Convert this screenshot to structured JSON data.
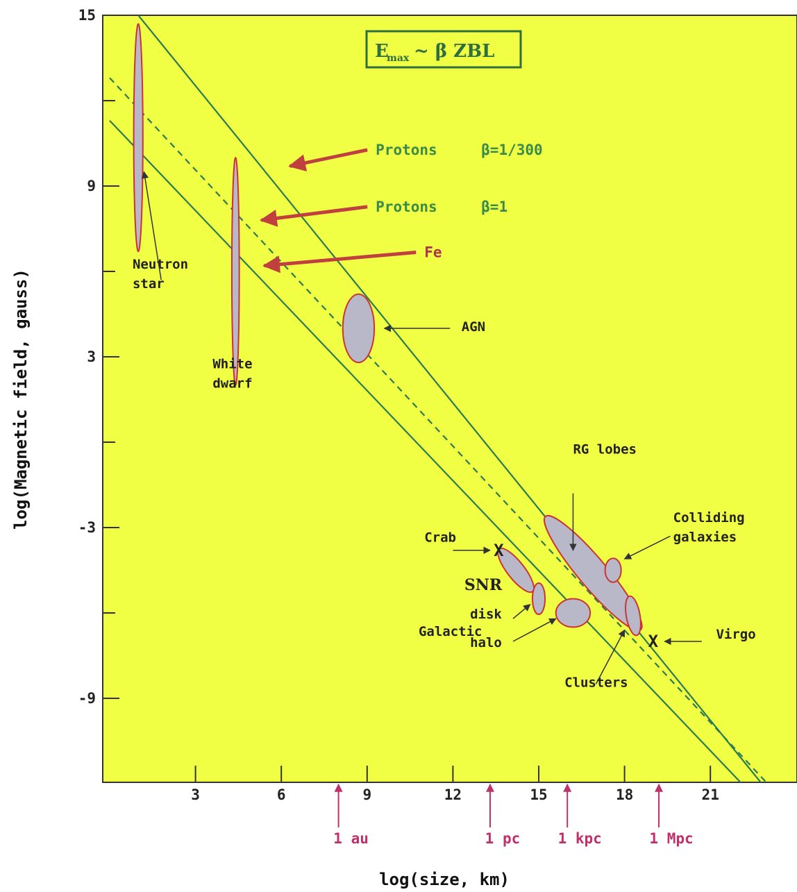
{
  "chart_data": {
    "type": "scatter",
    "title": "E_max ~ β ZBL",
    "title_parts": {
      "e": "E",
      "sub": "max",
      "rest": "~ β ZBL"
    },
    "xlabel": "log(size, km)",
    "ylabel": "log(Magnetic field, gauss)",
    "xlim": [
      0,
      23
    ],
    "ylim": [
      -12,
      15
    ],
    "x_ticks": [
      3,
      6,
      9,
      12,
      15,
      18,
      21
    ],
    "y_ticks": [
      -9,
      -3,
      3,
      9,
      15
    ],
    "y_minor_ticks": [
      -6,
      0,
      6,
      12
    ],
    "background_color": "#f0ff44",
    "line_color": "#2a7a52",
    "ellipse_stroke": "#cc3333",
    "ellipse_fill": "#b8b8c8",
    "limit_lines": [
      {
        "name": "Protons β=1/300",
        "style": "solid",
        "points": [
          [
            1.0,
            15.0
          ],
          [
            22.8,
            -12.0
          ]
        ]
      },
      {
        "name": "Protons β=1",
        "style": "dashed",
        "points": [
          [
            0.0,
            12.8
          ],
          [
            23.0,
            -12.0
          ]
        ]
      },
      {
        "name": "Fe",
        "style": "solid",
        "points": [
          [
            0.0,
            11.3
          ],
          [
            22.1,
            -12.0
          ]
        ]
      }
    ],
    "line_labels": [
      {
        "text": "Protons",
        "beta": "β=1/300",
        "class": "green",
        "at": [
          9.3,
          10.1
        ],
        "arrow_to": [
          6.3,
          9.7
        ]
      },
      {
        "text": "Protons",
        "beta": "β=1",
        "class": "green",
        "at": [
          9.3,
          8.1
        ],
        "arrow_to": [
          5.3,
          7.8
        ]
      },
      {
        "text": "Fe",
        "beta": "",
        "class": "red",
        "at": [
          11.0,
          6.5
        ],
        "arrow_to": [
          5.4,
          6.2
        ]
      }
    ],
    "objects": [
      {
        "name": "Neutron star",
        "shape": "ellipse",
        "x": 1.0,
        "y": 10.7,
        "rx": 0.16,
        "ry": 4.0,
        "angle": 0
      },
      {
        "name": "White dwarf",
        "shape": "ellipse",
        "x": 4.4,
        "y": 6.0,
        "rx": 0.13,
        "ry": 4.0,
        "angle": 0
      },
      {
        "name": "AGN",
        "shape": "ellipse",
        "x": 8.7,
        "y": 4.0,
        "rx": 0.55,
        "ry": 1.2,
        "angle": 0
      },
      {
        "name": "SNR",
        "shape": "ellipse",
        "x": 14.2,
        "y": -4.5,
        "rx": 0.3,
        "ry": 0.95,
        "angle": -38
      },
      {
        "name": "Galactic disk",
        "shape": "ellipse",
        "x": 15.0,
        "y": -5.5,
        "rx": 0.22,
        "ry": 0.55,
        "angle": 0
      },
      {
        "name": "Galactic halo",
        "shape": "ellipse",
        "x": 16.2,
        "y": -6.0,
        "rx": 0.6,
        "ry": 0.5,
        "angle": 0
      },
      {
        "name": "RG lobes",
        "shape": "ellipse",
        "x": 16.9,
        "y": -4.6,
        "rx": 0.5,
        "ry": 2.6,
        "angle": -40
      },
      {
        "name": "Colliding galaxies",
        "shape": "ellipse",
        "x": 17.6,
        "y": -4.5,
        "rx": 0.28,
        "ry": 0.42,
        "angle": 0
      },
      {
        "name": "Clusters",
        "shape": "ellipse",
        "x": 18.3,
        "y": -6.1,
        "rx": 0.24,
        "ry": 0.7,
        "angle": -10
      },
      {
        "name": "Crab",
        "shape": "x",
        "x": 13.6,
        "y": -3.8
      },
      {
        "name": "Virgo",
        "shape": "x",
        "x": 19.0,
        "y": -7.0
      }
    ],
    "annotations": [
      {
        "lines": [
          "Neutron",
          "star"
        ],
        "at": [
          0.8,
          6.1
        ],
        "arrow_from": [
          1.8,
          5.7
        ],
        "arrow_to": [
          1.2,
          9.5
        ]
      },
      {
        "lines": [
          "White",
          "dwarf"
        ],
        "at": [
          3.6,
          2.6
        ],
        "arrow_from": null,
        "arrow_to": null
      },
      {
        "lines": [
          "AGN"
        ],
        "at": [
          12.3,
          3.9
        ],
        "arrow_from": [
          11.9,
          4.0
        ],
        "arrow_to": [
          9.6,
          4.0
        ]
      },
      {
        "lines": [
          "RG lobes"
        ],
        "at": [
          16.2,
          -0.4
        ],
        "arrow_from": [
          16.2,
          -1.8
        ],
        "arrow_to": [
          16.2,
          -3.8
        ]
      },
      {
        "lines": [
          "Colliding",
          "galaxies"
        ],
        "at": [
          19.7,
          -2.8
        ],
        "arrow_from": [
          19.6,
          -3.3
        ],
        "arrow_to": [
          18.0,
          -4.1
        ]
      },
      {
        "lines": [
          "Crab"
        ],
        "at": [
          11.0,
          -3.5
        ],
        "arrow_from": [
          12.0,
          -3.8
        ],
        "arrow_to": [
          13.3,
          -3.8
        ]
      },
      {
        "lines": [
          "SNR"
        ],
        "at": [
          12.4,
          -5.2
        ],
        "arrow_from": null,
        "arrow_to": null,
        "serif": true
      },
      {
        "lines": [
          "disk"
        ],
        "at": [
          12.6,
          -6.2
        ],
        "arrow_from": [
          14.1,
          -6.2
        ],
        "arrow_to": [
          14.7,
          -5.7
        ]
      },
      {
        "lines": [
          "Galactic"
        ],
        "at": [
          10.8,
          -6.8
        ],
        "arrow_from": null,
        "arrow_to": null
      },
      {
        "lines": [
          "halo"
        ],
        "at": [
          12.6,
          -7.2
        ],
        "arrow_from": [
          14.1,
          -7.0
        ],
        "arrow_to": [
          15.6,
          -6.2
        ]
      },
      {
        "lines": [
          "Virgo"
        ],
        "at": [
          21.2,
          -6.9
        ],
        "arrow_from": [
          20.7,
          -7.0
        ],
        "arrow_to": [
          19.4,
          -7.0
        ]
      },
      {
        "lines": [
          "Clusters"
        ],
        "at": [
          15.9,
          -8.6
        ],
        "arrow_from": [
          17.0,
          -8.5
        ],
        "arrow_to": [
          18.0,
          -6.6
        ]
      }
    ],
    "scale_markers": [
      {
        "label": "1 au",
        "x": 8.0
      },
      {
        "label": "1 pc",
        "x": 13.3
      },
      {
        "label": "1 kpc",
        "x": 16.0
      },
      {
        "label": "1 Mpc",
        "x": 19.2
      }
    ]
  }
}
